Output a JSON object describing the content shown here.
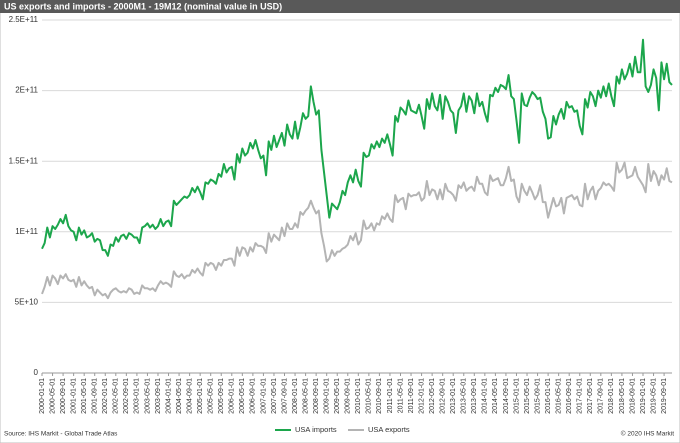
{
  "chart_data": {
    "type": "line",
    "title": "US exports and imports - 2000M1 - 19M12  (nominal value in USD)",
    "source": "Source: IHS Markit - Global Trade Atlas",
    "copyright": "© 2020 IHS Markit",
    "categories": [
      "2000-01-01",
      null,
      null,
      null,
      "2000-05-01",
      null,
      null,
      null,
      "2000-09-01",
      null,
      null,
      null,
      "2001-01-01",
      null,
      null,
      null,
      "2001-05-01",
      null,
      null,
      null,
      "2001-09-01",
      null,
      null,
      null,
      "2002-01-01",
      null,
      null,
      null,
      "2002-05-01",
      null,
      null,
      null,
      "2002-09-01",
      null,
      null,
      null,
      "2003-01-01",
      null,
      null,
      null,
      "2003-05-01",
      null,
      null,
      null,
      "2003-09-01",
      null,
      null,
      null,
      "2004-01-01",
      null,
      null,
      null,
      "2004-05-01",
      null,
      null,
      null,
      "2004-09-01",
      null,
      null,
      null,
      "2005-01-01",
      null,
      null,
      null,
      "2005-05-01",
      null,
      null,
      null,
      "2005-09-01",
      null,
      null,
      null,
      "2006-01-01",
      null,
      null,
      null,
      "2006-05-01",
      null,
      null,
      null,
      "2006-09-01",
      null,
      null,
      null,
      "2007-01-01",
      null,
      null,
      null,
      "2007-05-01",
      null,
      null,
      null,
      "2007-09-01",
      null,
      null,
      null,
      "2008-01-01",
      null,
      null,
      null,
      "2008-05-01",
      null,
      null,
      null,
      "2008-09-01",
      null,
      null,
      null,
      "2009-01-01",
      null,
      null,
      null,
      "2009-05-01",
      null,
      null,
      null,
      "2009-09-01",
      null,
      null,
      null,
      "2010-01-01",
      null,
      null,
      null,
      "2010-05-01",
      null,
      null,
      null,
      "2010-09-01",
      null,
      null,
      null,
      "2011-01-01",
      null,
      null,
      null,
      "2011-05-01",
      null,
      null,
      null,
      "2011-09-01",
      null,
      null,
      null,
      "2012-01-01",
      null,
      null,
      null,
      "2012-05-01",
      null,
      null,
      null,
      "2012-09-01",
      null,
      null,
      null,
      "2013-01-01",
      null,
      null,
      null,
      "2013-05-01",
      null,
      null,
      null,
      "2013-09-01",
      null,
      null,
      null,
      "2014-01-01",
      null,
      null,
      null,
      "2014-05-01",
      null,
      null,
      null,
      "2014-09-01",
      null,
      null,
      null,
      "2015-01-01",
      null,
      null,
      null,
      "2015-05-01",
      null,
      null,
      null,
      "2015-09-01",
      null,
      null,
      null,
      "2016-01-01",
      null,
      null,
      null,
      "2016-05-01",
      null,
      null,
      null,
      "2016-09-01",
      null,
      null,
      null,
      "2017-01-01",
      null,
      null,
      null,
      "2017-05-01",
      null,
      null,
      null,
      "2017-09-01",
      null,
      null,
      null,
      "2018-01-01",
      null,
      null,
      null,
      "2018-05-01",
      null,
      null,
      null,
      "2018-09-01",
      null,
      null,
      null,
      "2019-01-01",
      null,
      null,
      null,
      "2019-05-01",
      null,
      null,
      null,
      "2019-09-01",
      null,
      null,
      null
    ],
    "series": [
      {
        "name": "USA imports",
        "color": "#1ca64c",
        "values": [
          88000000000.0,
          92000000000.0,
          103000000000.0,
          96000000000.0,
          104000000000.0,
          102000000000.0,
          105000000000.0,
          109000000000.0,
          106000000000.0,
          112000000000.0,
          104000000000.0,
          101000000000.0,
          100000000000.0,
          94000000000.0,
          103000000000.0,
          98000000000.0,
          101000000000.0,
          96000000000.0,
          97000000000.0,
          99000000000.0,
          93000000000.0,
          95000000000.0,
          94000000000.0,
          87000000000.0,
          87000000000.0,
          83000000000.0,
          91000000000.0,
          90000000000.0,
          96000000000.0,
          93000000000.0,
          97000000000.0,
          98000000000.0,
          95000000000.0,
          99000000000.0,
          98000000000.0,
          96000000000.0,
          96000000000.0,
          92000000000.0,
          103000000000.0,
          104000000000.0,
          106000000000.0,
          103000000000.0,
          105000000000.0,
          102000000000.0,
          104000000000.0,
          109000000000.0,
          104000000000.0,
          107000000000.0,
          108000000000.0,
          104000000000.0,
          122000000000.0,
          119000000000.0,
          121000000000.0,
          123000000000.0,
          125000000000.0,
          124000000000.0,
          126000000000.0,
          131000000000.0,
          128000000000.0,
          132000000000.0,
          128000000000.0,
          123000000000.0,
          135000000000.0,
          134000000000.0,
          137000000000.0,
          136000000000.0,
          134000000000.0,
          141000000000.0,
          139000000000.0,
          148000000000.0,
          142000000000.0,
          145000000000.0,
          146000000000.0,
          137000000000.0,
          155000000000.0,
          149000000000.0,
          159000000000.0,
          154000000000.0,
          156000000000.0,
          163000000000.0,
          159000000000.0,
          165000000000.0,
          158000000000.0,
          152000000000.0,
          154000000000.0,
          140000000000.0,
          164000000000.0,
          158000000000.0,
          168000000000.0,
          160000000000.0,
          165000000000.0,
          170000000000.0,
          161000000000.0,
          176000000000.0,
          169000000000.0,
          166000000000.0,
          178000000000.0,
          166000000000.0,
          174000000000.0,
          184000000000.0,
          180000000000.0,
          182000000000.0,
          203000000000.0,
          192000000000.0,
          183000000000.0,
          186000000000.0,
          158000000000.0,
          142000000000.0,
          126000000000.0,
          110000000000.0,
          120000000000.0,
          118000000000.0,
          116000000000.0,
          121000000000.0,
          129000000000.0,
          126000000000.0,
          135000000000.0,
          140000000000.0,
          135000000000.0,
          144000000000.0,
          136000000000.0,
          132000000000.0,
          156000000000.0,
          153000000000.0,
          154000000000.0,
          162000000000.0,
          159000000000.0,
          164000000000.0,
          160000000000.0,
          166000000000.0,
          163000000000.0,
          169000000000.0,
          162000000000.0,
          154000000000.0,
          182000000000.0,
          178000000000.0,
          188000000000.0,
          186000000000.0,
          183000000000.0,
          193000000000.0,
          186000000000.0,
          185000000000.0,
          184000000000.0,
          190000000000.0,
          182000000000.0,
          173000000000.0,
          194000000000.0,
          187000000000.0,
          198000000000.0,
          189000000000.0,
          186000000000.0,
          197000000000.0,
          180000000000.0,
          196000000000.0,
          192000000000.0,
          186000000000.0,
          184000000000.0,
          170000000000.0,
          186000000000.0,
          189000000000.0,
          198000000000.0,
          185000000000.0,
          196000000000.0,
          193000000000.0,
          184000000000.0,
          198000000000.0,
          189000000000.0,
          192000000000.0,
          184000000000.0,
          178000000000.0,
          197000000000.0,
          196000000000.0,
          202000000000.0,
          199000000000.0,
          204000000000.0,
          203000000000.0,
          201000000000.0,
          211000000000.0,
          196000000000.0,
          194000000000.0,
          179000000000.0,
          163000000000.0,
          198000000000.0,
          190000000000.0,
          189000000000.0,
          195000000000.0,
          199000000000.0,
          197000000000.0,
          194000000000.0,
          195000000000.0,
          185000000000.0,
          180000000000.0,
          166000000000.0,
          167000000000.0,
          182000000000.0,
          176000000000.0,
          183000000000.0,
          187000000000.0,
          180000000000.0,
          192000000000.0,
          188000000000.0,
          189000000000.0,
          185000000000.0,
          186000000000.0,
          175000000000.0,
          169000000000.0,
          194000000000.0,
          188000000000.0,
          199000000000.0,
          196000000000.0,
          189000000000.0,
          200000000000.0,
          195000000000.0,
          203000000000.0,
          196000000000.0,
          205000000000.0,
          196000000000.0,
          189000000000.0,
          210000000000.0,
          205000000000.0,
          215000000000.0,
          208000000000.0,
          212000000000.0,
          219000000000.0,
          210000000000.0,
          224000000000.0,
          213000000000.0,
          213000000000.0,
          236000000000.0,
          203000000000.0,
          199000000000.0,
          204000000000.0,
          215000000000.0,
          209000000000.0,
          186000000000.0,
          220000000000.0,
          208000000000.0,
          219000000000.0,
          206000000000.0,
          204000000000.0
        ]
      },
      {
        "name": "USA exports",
        "color": "#b4b4b4",
        "values": [
          56000000000.0,
          61000000000.0,
          68000000000.0,
          62000000000.0,
          69000000000.0,
          67000000000.0,
          63000000000.0,
          69000000000.0,
          67000000000.0,
          70000000000.0,
          66000000000.0,
          65000000000.0,
          66000000000.0,
          61000000000.0,
          68000000000.0,
          62000000000.0,
          65000000000.0,
          62000000000.0,
          60000000000.0,
          61000000000.0,
          55000000000.0,
          59000000000.0,
          57000000000.0,
          55000000000.0,
          56000000000.0,
          53000000000.0,
          57000000000.0,
          59000000000.0,
          60000000000.0,
          58000000000.0,
          57000000000.0,
          58000000000.0,
          57000000000.0,
          60000000000.0,
          59000000000.0,
          56000000000.0,
          57000000000.0,
          56000000000.0,
          62000000000.0,
          60000000000.0,
          60000000000.0,
          59000000000.0,
          60000000000.0,
          58000000000.0,
          62000000000.0,
          65000000000.0,
          63000000000.0,
          64000000000.0,
          63000000000.0,
          61000000000.0,
          72000000000.0,
          69000000000.0,
          68000000000.0,
          70000000000.0,
          67000000000.0,
          69000000000.0,
          69000000000.0,
          73000000000.0,
          71000000000.0,
          74000000000.0,
          71000000000.0,
          69000000000.0,
          78000000000.0,
          76000000000.0,
          78000000000.0,
          77000000000.0,
          73000000000.0,
          78000000000.0,
          76000000000.0,
          80000000000.0,
          80000000000.0,
          81000000000.0,
          81000000000.0,
          76000000000.0,
          89000000000.0,
          83000000000.0,
          89000000000.0,
          88000000000.0,
          83000000000.0,
          89000000000.0,
          86000000000.0,
          92000000000.0,
          90000000000.0,
          90000000000.0,
          89000000000.0,
          85000000000.0,
          99000000000.0,
          93000000000.0,
          98000000000.0,
          96000000000.0,
          94000000000.0,
          103000000000.0,
          97000000000.0,
          106000000000.0,
          102000000000.0,
          102000000000.0,
          106000000000.0,
          103000000000.0,
          114000000000.0,
          112000000000.0,
          115000000000.0,
          117000000000.0,
          122000000000.0,
          117000000000.0,
          113000000000.0,
          115000000000.0,
          99000000000.0,
          90000000000.0,
          79000000000.0,
          81000000000.0,
          87000000000.0,
          83000000000.0,
          86000000000.0,
          86000000000.0,
          88000000000.0,
          89000000000.0,
          91000000000.0,
          97000000000.0,
          94000000000.0,
          99000000000.0,
          91000000000.0,
          94000000000.0,
          108000000000.0,
          102000000000.0,
          103000000000.0,
          106000000000.0,
          101000000000.0,
          106000000000.0,
          105000000000.0,
          111000000000.0,
          109000000000.0,
          113000000000.0,
          109000000000.0,
          107000000000.0,
          126000000000.0,
          121000000000.0,
          123000000000.0,
          124000000000.0,
          116000000000.0,
          127000000000.0,
          125000000000.0,
          126000000000.0,
          126000000000.0,
          128000000000.0,
          122000000000.0,
          124000000000.0,
          136000000000.0,
          126000000000.0,
          130000000000.0,
          129000000000.0,
          123000000000.0,
          130000000000.0,
          123000000000.0,
          134000000000.0,
          129000000000.0,
          128000000000.0,
          126000000000.0,
          122000000000.0,
          133000000000.0,
          131000000000.0,
          135000000000.0,
          129000000000.0,
          131000000000.0,
          132000000000.0,
          129000000000.0,
          139000000000.0,
          134000000000.0,
          134000000000.0,
          128000000000.0,
          126000000000.0,
          140000000000.0,
          136000000000.0,
          137000000000.0,
          138000000000.0,
          133000000000.0,
          133000000000.0,
          138000000000.0,
          146000000000.0,
          136000000000.0,
          137000000000.0,
          125000000000.0,
          121000000000.0,
          134000000000.0,
          129000000000.0,
          126000000000.0,
          132000000000.0,
          128000000000.0,
          123000000000.0,
          126000000000.0,
          133000000000.0,
          121000000000.0,
          121000000000.0,
          110000000000.0,
          117000000000.0,
          124000000000.0,
          118000000000.0,
          119000000000.0,
          124000000000.0,
          113000000000.0,
          124000000000.0,
          125000000000.0,
          126000000000.0,
          123000000000.0,
          125000000000.0,
          119000000000.0,
          118000000000.0,
          134000000000.0,
          123000000000.0,
          129000000000.0,
          132000000000.0,
          123000000000.0,
          129000000000.0,
          131000000000.0,
          135000000000.0,
          133000000000.0,
          134000000000.0,
          132000000000.0,
          129000000000.0,
          149000000000.0,
          142000000000.0,
          144000000000.0,
          149000000000.0,
          138000000000.0,
          139000000000.0,
          140000000000.0,
          146000000000.0,
          139000000000.0,
          136000000000.0,
          133000000000.0,
          128000000000.0,
          148000000000.0,
          136000000000.0,
          143000000000.0,
          140000000000.0,
          133000000000.0,
          140000000000.0,
          137000000000.0,
          145000000000.0,
          136000000000.0,
          135000000000.0
        ]
      }
    ],
    "ylim": [
      0,
      250000000000.0
    ],
    "yticks": [
      0,
      {
        "value": 50000000000.0,
        "label": "5E+10"
      },
      {
        "value": 100000000000.0,
        "label": "1E+11"
      },
      {
        "value": 150000000000.0,
        "label": "1.5E+11"
      },
      {
        "value": 200000000000.0,
        "label": "2E+11"
      },
      {
        "value": 250000000000.0,
        "label": "2.5E+11"
      }
    ],
    "grid": true
  }
}
